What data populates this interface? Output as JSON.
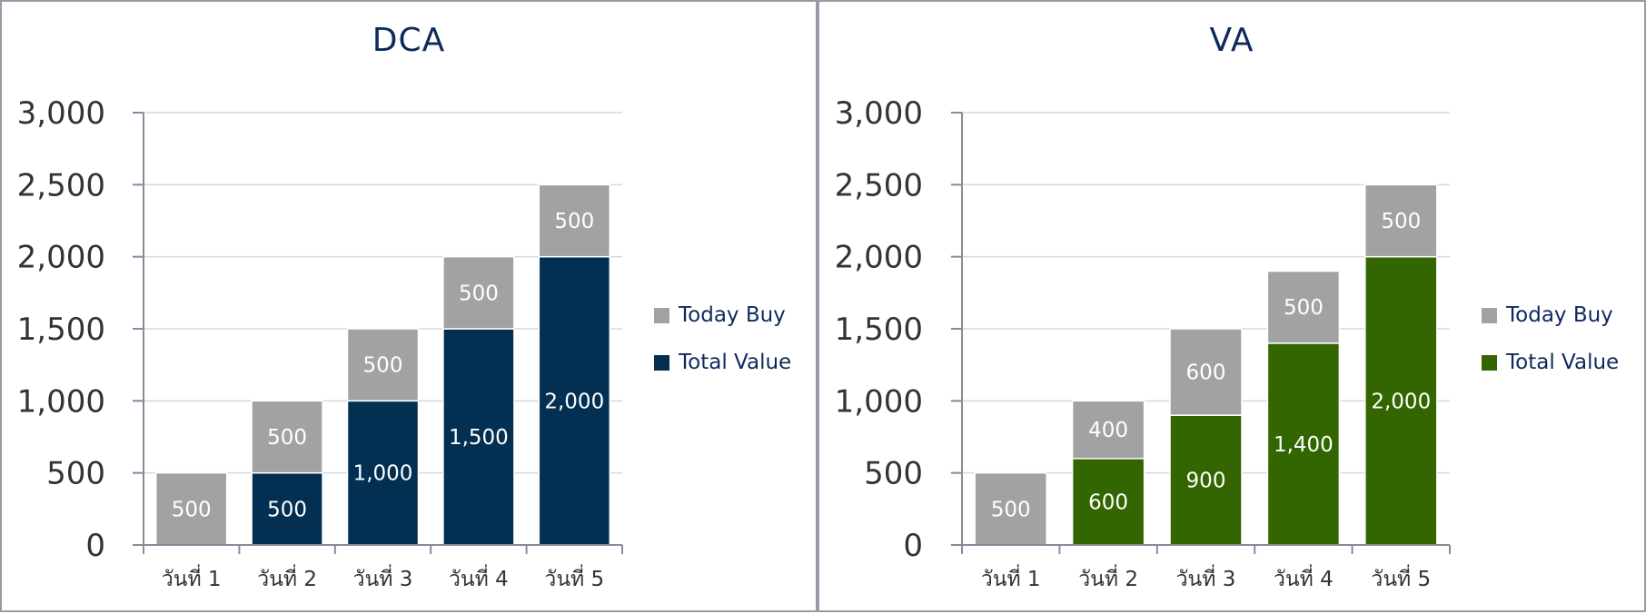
{
  "chart_data": [
    {
      "type": "bar",
      "stacked": true,
      "title": "DCA",
      "categories": [
        "วันที่ 1",
        "วันที่ 2",
        "วันที่ 3",
        "วันที่ 4",
        "วันที่ 5"
      ],
      "yticks": [
        "0",
        "500",
        "1,000",
        "1,500",
        "2,000",
        "2,500",
        "3,000"
      ],
      "ylim": [
        0,
        3000
      ],
      "grid": true,
      "legend_position": "right",
      "series": [
        {
          "name": "Total Value",
          "color": "#033052",
          "values": [
            0,
            500,
            1000,
            1500,
            2000
          ],
          "labels": [
            "",
            "500",
            "1,000",
            "1,500",
            "2,000"
          ]
        },
        {
          "name": "Today Buy",
          "color": "#a2a2a2",
          "values": [
            500,
            500,
            500,
            500,
            500
          ],
          "labels": [
            "500",
            "500",
            "500",
            "500",
            "500"
          ]
        }
      ]
    },
    {
      "type": "bar",
      "stacked": true,
      "title": "VA",
      "categories": [
        "วันที่ 1",
        "วันที่ 2",
        "วันที่ 3",
        "วันที่ 4",
        "วันที่ 5"
      ],
      "yticks": [
        "0",
        "500",
        "1,000",
        "1,500",
        "2,000",
        "2,500",
        "3,000"
      ],
      "ylim": [
        0,
        3000
      ],
      "grid": true,
      "legend_position": "right",
      "series": [
        {
          "name": "Total Value",
          "color": "#336600",
          "values": [
            0,
            600,
            900,
            1400,
            2000
          ],
          "labels": [
            "",
            "600",
            "900",
            "1,400",
            "2,000"
          ]
        },
        {
          "name": "Today Buy",
          "color": "#a2a2a2",
          "values": [
            500,
            400,
            600,
            500,
            500
          ],
          "labels": [
            "500",
            "400",
            "600",
            "500",
            "500"
          ]
        }
      ]
    }
  ],
  "colors": {
    "axis": "#8a8a9a",
    "grid": "#d6d8de",
    "title": "#0e2a5c"
  }
}
